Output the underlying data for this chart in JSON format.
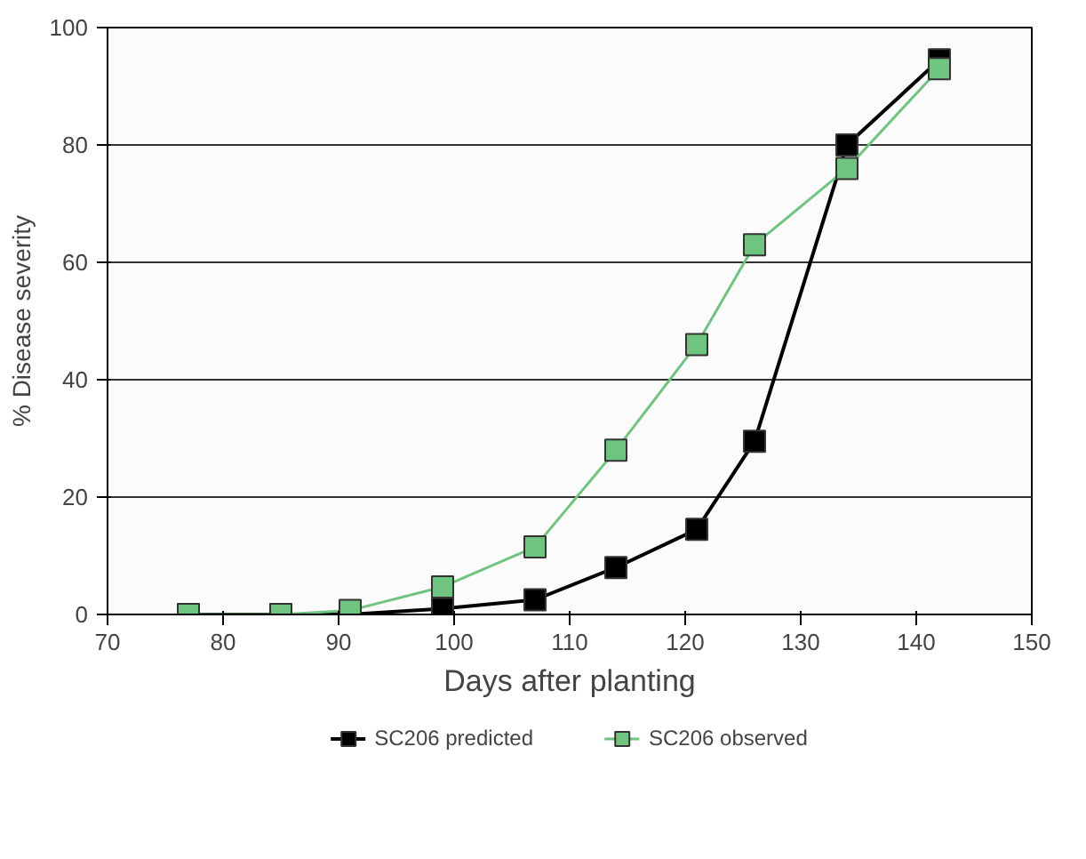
{
  "chart_data": {
    "type": "line",
    "xlabel": "Days after planting",
    "ylabel": "% Disease severity",
    "x": [
      77,
      85,
      91,
      99,
      107,
      114,
      121,
      126,
      134,
      142
    ],
    "series": [
      {
        "name": "SC206 predicted",
        "color": "#000000",
        "values": [
          0,
          0,
          0,
          1,
          2.5,
          8,
          14.5,
          29.5,
          80,
          94.5
        ]
      },
      {
        "name": "SC206 observed",
        "color": "#6fc47f",
        "values": [
          0,
          0,
          0.7,
          4.7,
          11.5,
          28,
          46,
          63,
          76,
          93
        ]
      }
    ],
    "xlim": [
      70,
      150
    ],
    "xticks": [
      70,
      80,
      90,
      100,
      110,
      120,
      130,
      140,
      150
    ],
    "ylim": [
      0,
      100
    ],
    "yticks": [
      0,
      20,
      40,
      60,
      80,
      100
    ],
    "grid": "y",
    "legend": "bottom",
    "marker": "square",
    "line_style": "solid"
  }
}
